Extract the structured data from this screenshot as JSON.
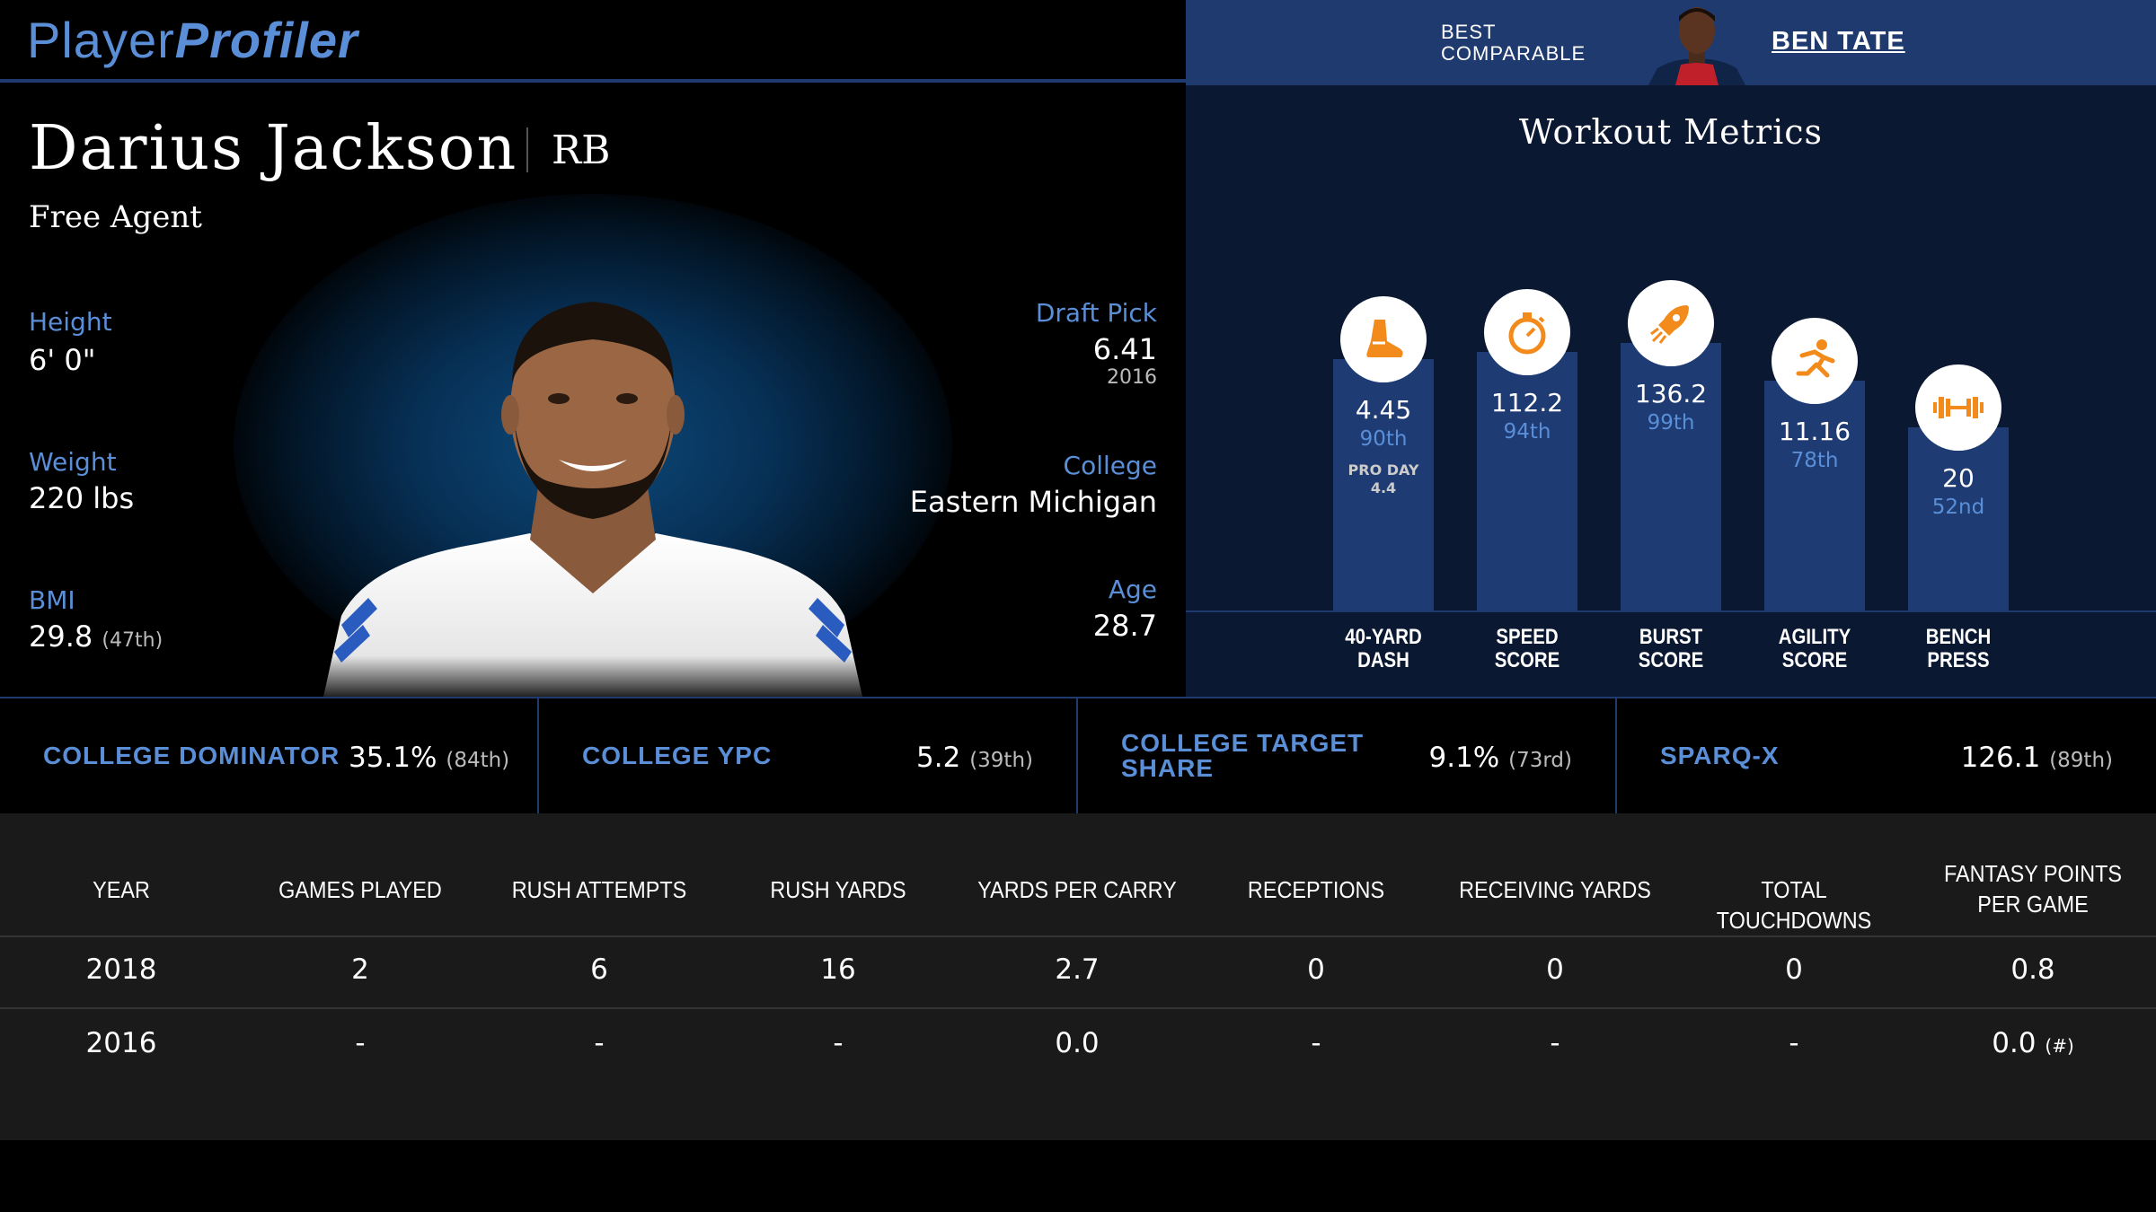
{
  "logo": {
    "part1": "Player",
    "part2": "Profiler"
  },
  "comparable": {
    "label_line1": "BEST",
    "label_line2": "COMPARABLE",
    "name": "BEN TATE"
  },
  "player": {
    "name": "Darius Jackson",
    "position": "RB",
    "team": "Free Agent",
    "height_label": "Height",
    "height": "6' 0\"",
    "weight_label": "Weight",
    "weight": "220 lbs",
    "bmi_label": "BMI",
    "bmi": "29.8",
    "bmi_rank": "(47th)",
    "draft_label": "Draft Pick",
    "draft": "6.41",
    "draft_year": "2016",
    "college_label": "College",
    "college": "Eastern Michigan",
    "age_label": "Age",
    "age": "28.7"
  },
  "workout": {
    "title": "Workout Metrics",
    "metrics": [
      {
        "label1": "40-YARD",
        "label2": "DASH",
        "value": "4.45",
        "rank": "90th",
        "extra1": "PRO DAY",
        "extra2": "4.4",
        "icon": "running-shoe-icon",
        "percentile": 90
      },
      {
        "label1": "SPEED",
        "label2": "SCORE",
        "value": "112.2",
        "rank": "94th",
        "icon": "stopwatch-icon",
        "percentile": 94
      },
      {
        "label1": "BURST",
        "label2": "SCORE",
        "value": "136.2",
        "rank": "99th",
        "icon": "rocket-icon",
        "percentile": 99
      },
      {
        "label1": "AGILITY",
        "label2": "SCORE",
        "value": "11.16",
        "rank": "78th",
        "icon": "runner-icon",
        "percentile": 78
      },
      {
        "label1": "BENCH",
        "label2": "PRESS",
        "value": "20",
        "rank": "52nd",
        "icon": "barbell-icon",
        "percentile": 52
      }
    ]
  },
  "college_stats": [
    {
      "label1": "COLLEGE DOMINATOR",
      "label2": "",
      "value": "35.1%",
      "rank": "(84th)"
    },
    {
      "label1": "COLLEGE YPC",
      "label2": "",
      "value": "5.2",
      "rank": "(39th)"
    },
    {
      "label1": "COLLEGE TARGET",
      "label2": "SHARE",
      "value": "9.1%",
      "rank": "(73rd)"
    },
    {
      "label1": "SPARQ-X",
      "label2": "",
      "value": "126.1",
      "rank": "(89th)"
    }
  ],
  "table": {
    "headers": [
      "YEAR",
      "GAMES PLAYED",
      "RUSH ATTEMPTS",
      "RUSH YARDS",
      "YARDS PER CARRY",
      "RECEPTIONS",
      "RECEIVING YARDS",
      "TOTAL TOUCHDOWNS",
      "FANTASY POINTS PER GAME"
    ],
    "rows": [
      [
        "2018",
        "2",
        "6",
        "16",
        "2.7",
        "0",
        "0",
        "0",
        "0.8"
      ],
      [
        "2016",
        "-",
        "-",
        "-",
        "0.0",
        "-",
        "-",
        "-",
        "0.0"
      ]
    ],
    "row2_note": "(#)"
  },
  "colors": {
    "accent": "#5a8fd8",
    "bar": "#1e3c73",
    "header": "#1f3a6e",
    "icon": "#f28b1c"
  }
}
